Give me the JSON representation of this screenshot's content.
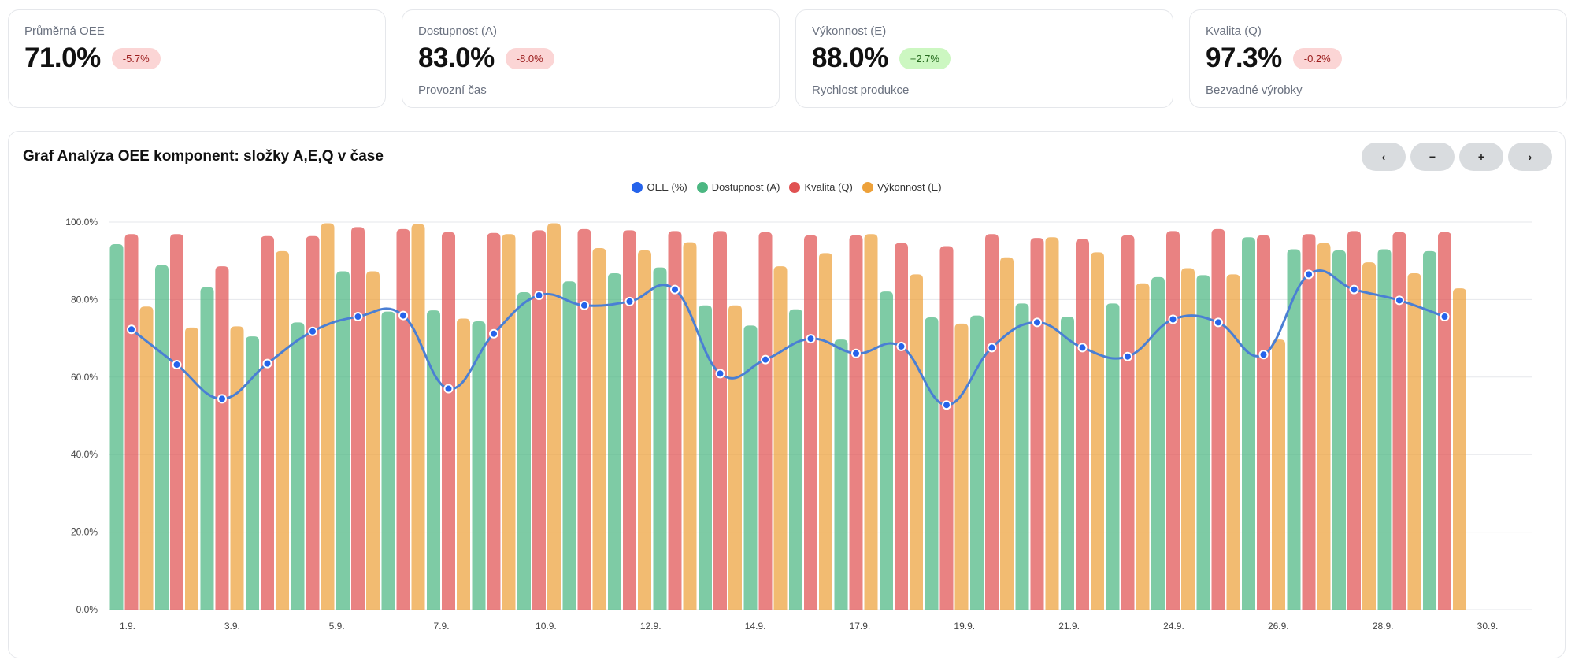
{
  "kpis": [
    {
      "label": "Průměrná OEE",
      "value": "71.0%",
      "delta": "-5.7%",
      "trend": "negative",
      "sub": ""
    },
    {
      "label": "Dostupnost (A)",
      "value": "83.0%",
      "delta": "-8.0%",
      "trend": "negative",
      "sub": "Provozní čas"
    },
    {
      "label": "Výkonnost (E)",
      "value": "88.0%",
      "delta": "+2.7%",
      "trend": "positive",
      "sub": "Rychlost produkce"
    },
    {
      "label": "Kvalita (Q)",
      "value": "97.3%",
      "delta": "-0.2%",
      "trend": "negative",
      "sub": "Bezvadné výrobky"
    }
  ],
  "chart_controls": {
    "prev": "‹",
    "zoom_out": "−",
    "zoom_in": "+",
    "next": "›"
  },
  "chart_data": {
    "type": "bar",
    "title": "Graf Analýza OEE komponent: složky A,E,Q v čase",
    "ylim": [
      0,
      100
    ],
    "y_ticks": [
      "0.0%",
      "20.0%",
      "40.0%",
      "60.0%",
      "80.0%",
      "100.0%"
    ],
    "x_ticks": [
      "1.9.",
      "3.9.",
      "5.9.",
      "7.9.",
      "10.9.",
      "12.9.",
      "14.9.",
      "17.9.",
      "19.9.",
      "21.9.",
      "24.9.",
      "26.9.",
      "28.9.",
      "30.9."
    ],
    "grid": true,
    "legend_position": "top",
    "series": [
      {
        "name": "OEE (%)",
        "type": "line",
        "color": "#2563eb",
        "values": [
          72.3,
          63.2,
          54.4,
          63.5,
          71.8,
          75.6,
          75.9,
          57.0,
          71.2,
          81.1,
          78.5,
          79.5,
          82.6,
          60.9,
          64.5,
          69.9,
          66.1,
          67.9,
          52.8,
          67.6,
          74.1,
          67.6,
          65.3,
          74.9,
          74.1,
          65.8,
          86.5,
          82.6,
          79.8,
          75.6
        ]
      },
      {
        "name": "Dostupnost (A)",
        "type": "bar",
        "color": "#4cb782",
        "values": [
          94.3,
          88.9,
          83.2,
          70.5,
          74.1,
          87.3,
          76.9,
          77.2,
          74.4,
          81.9,
          84.7,
          86.8,
          88.3,
          78.5,
          73.3,
          77.5,
          69.7,
          82.1,
          75.4,
          75.9,
          79.0,
          75.6,
          79.0,
          85.8,
          86.3,
          96.1,
          93.0,
          92.7,
          93.0,
          92.5
        ]
      },
      {
        "name": "Kvalita (Q)",
        "type": "bar",
        "color": "#e05252",
        "values": [
          96.9,
          96.9,
          88.6,
          96.4,
          96.4,
          98.7,
          98.2,
          97.4,
          97.2,
          97.9,
          98.2,
          97.9,
          97.7,
          97.7,
          97.4,
          96.6,
          96.6,
          94.6,
          93.8,
          96.9,
          95.9,
          95.6,
          96.6,
          97.7,
          98.2,
          96.6,
          96.9,
          97.7,
          97.4,
          97.4
        ]
      },
      {
        "name": "Výkonnost (E)",
        "type": "bar",
        "color": "#eda13a",
        "values": [
          78.2,
          72.8,
          73.1,
          92.5,
          99.7,
          87.3,
          99.5,
          75.1,
          96.9,
          99.7,
          93.3,
          92.7,
          94.8,
          78.5,
          88.6,
          92.0,
          96.9,
          86.5,
          73.8,
          90.9,
          96.1,
          92.2,
          84.2,
          88.1,
          86.5,
          69.7,
          94.6,
          89.6,
          86.8,
          82.9
        ]
      }
    ]
  }
}
